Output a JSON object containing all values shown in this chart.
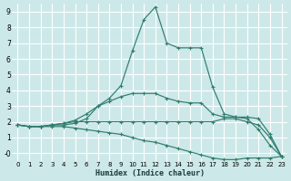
{
  "xlabel": "Humidex (Indice chaleur)",
  "background_color": "#cde8e8",
  "grid_color": "#ffffff",
  "line_color": "#2e7d6e",
  "xlim": [
    -0.5,
    23.5
  ],
  "ylim": [
    -0.5,
    9.5
  ],
  "x_ticks": [
    0,
    1,
    2,
    3,
    4,
    5,
    6,
    7,
    8,
    9,
    10,
    11,
    12,
    13,
    14,
    15,
    16,
    17,
    18,
    19,
    20,
    21,
    22,
    23
  ],
  "y_ticks": [
    0,
    1,
    2,
    3,
    4,
    5,
    6,
    7,
    8,
    9
  ],
  "y_tick_labels": [
    "-0",
    "1",
    "2",
    "3",
    "4",
    "5",
    "6",
    "7",
    "8",
    "9"
  ],
  "series": [
    {
      "x": [
        0,
        1,
        2,
        3,
        4,
        5,
        6,
        7,
        8,
        9,
        10,
        11,
        12,
        13,
        14,
        15,
        16,
        17,
        18,
        19,
        20,
        21,
        22,
        23
      ],
      "y": [
        1.8,
        1.7,
        1.7,
        1.8,
        1.8,
        1.9,
        2.2,
        3.0,
        3.5,
        4.3,
        6.5,
        8.5,
        9.3,
        7.0,
        6.7,
        6.7,
        6.7,
        4.2,
        2.5,
        2.3,
        2.2,
        1.5,
        0.5,
        -0.2
      ]
    },
    {
      "x": [
        0,
        1,
        2,
        3,
        4,
        5,
        6,
        7,
        8,
        9,
        10,
        11,
        12,
        13,
        14,
        15,
        16,
        17,
        18,
        19,
        20,
        21,
        22,
        23
      ],
      "y": [
        1.8,
        1.7,
        1.7,
        1.8,
        1.9,
        2.1,
        2.5,
        3.0,
        3.3,
        3.6,
        3.8,
        3.8,
        3.8,
        3.5,
        3.3,
        3.2,
        3.2,
        2.5,
        2.3,
        2.3,
        2.3,
        2.2,
        1.2,
        -0.2
      ]
    },
    {
      "x": [
        0,
        1,
        2,
        3,
        4,
        5,
        6,
        7,
        8,
        9,
        10,
        11,
        12,
        13,
        14,
        15,
        16,
        17,
        18,
        19,
        20,
        21,
        22,
        23
      ],
      "y": [
        1.8,
        1.7,
        1.7,
        1.8,
        1.9,
        2.0,
        2.0,
        2.0,
        2.0,
        2.0,
        2.0,
        2.0,
        2.0,
        2.0,
        2.0,
        2.0,
        2.0,
        2.0,
        2.2,
        2.2,
        2.0,
        1.8,
        1.0,
        -0.2
      ]
    },
    {
      "x": [
        0,
        1,
        2,
        3,
        4,
        5,
        6,
        7,
        8,
        9,
        10,
        11,
        12,
        13,
        14,
        15,
        16,
        17,
        18,
        19,
        20,
        21,
        22,
        23
      ],
      "y": [
        1.8,
        1.7,
        1.7,
        1.7,
        1.7,
        1.6,
        1.5,
        1.4,
        1.3,
        1.2,
        1.0,
        0.8,
        0.7,
        0.5,
        0.3,
        0.1,
        -0.1,
        -0.3,
        -0.4,
        -0.4,
        -0.3,
        -0.3,
        -0.3,
        -0.2
      ]
    }
  ]
}
